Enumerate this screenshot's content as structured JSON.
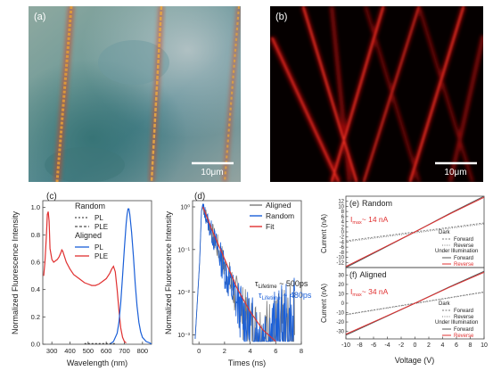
{
  "panels": {
    "a": {
      "label": "(a)",
      "scale": "10μm"
    },
    "b": {
      "label": "(b)",
      "scale": "10μm"
    },
    "c": {
      "label": "(c)"
    },
    "d": {
      "label": "(d)"
    },
    "e": {
      "label": "(e)",
      "title": "Random"
    },
    "f": {
      "label": "(f)",
      "title": "Aligned"
    }
  },
  "colors": {
    "aligned": "#1a5fd8",
    "random": "#7a7a7a",
    "red": "#e03030",
    "gray_curve": "#555555"
  },
  "chart_data": [
    {
      "id": "c",
      "type": "line",
      "xlabel": "Wavelength (nm)",
      "ylabel": "Normalized Fluorescence Intensity",
      "xlim": [
        250,
        850
      ],
      "ylim": [
        0,
        1.05
      ],
      "xticks": [
        300,
        400,
        500,
        600,
        700,
        800
      ],
      "yticks": [
        0.0,
        0.2,
        0.4,
        0.6,
        0.8,
        1.0
      ],
      "legend": {
        "group1": "Random",
        "group2": "Aligned",
        "pl": "PL",
        "ple": "PLE"
      },
      "series": [
        {
          "name": "PLE",
          "group": "Aligned",
          "color": "#e03030",
          "x": [
            255,
            262,
            270,
            275,
            280,
            285,
            290,
            300,
            310,
            320,
            330,
            340,
            350,
            355,
            360,
            370,
            380,
            400,
            420,
            450,
            480,
            500,
            520,
            540,
            560,
            580,
            600,
            620,
            630,
            640,
            650,
            660,
            670,
            680,
            690,
            700,
            710
          ],
          "y": [
            0.5,
            0.6,
            0.8,
            0.95,
            0.97,
            0.9,
            0.7,
            0.62,
            0.6,
            0.61,
            0.62,
            0.64,
            0.67,
            0.69,
            0.68,
            0.64,
            0.6,
            0.55,
            0.51,
            0.48,
            0.45,
            0.44,
            0.43,
            0.43,
            0.44,
            0.46,
            0.48,
            0.52,
            0.55,
            0.57,
            0.53,
            0.4,
            0.25,
            0.12,
            0.05,
            0.02,
            0.01
          ]
        },
        {
          "name": "PL",
          "group": "Aligned",
          "color": "#1a5fd8",
          "x": [
            620,
            640,
            660,
            670,
            680,
            690,
            700,
            710,
            715,
            720,
            725,
            730,
            740,
            750,
            760,
            770,
            780,
            790,
            800,
            820,
            840,
            850
          ],
          "y": [
            0.0,
            0.02,
            0.08,
            0.16,
            0.3,
            0.5,
            0.7,
            0.88,
            0.95,
            0.99,
            0.99,
            0.95,
            0.82,
            0.64,
            0.44,
            0.28,
            0.16,
            0.09,
            0.05,
            0.02,
            0.01,
            0.0
          ]
        }
      ]
    },
    {
      "id": "d",
      "type": "line",
      "xlabel": "Times (ns)",
      "ylabel": "Normalized Fluorescence Intensity",
      "yscale": "log",
      "xlim": [
        -0.5,
        8
      ],
      "ylim": [
        0.0006,
        1.4
      ],
      "xticks": [
        0,
        2,
        4,
        6,
        8
      ],
      "ytick_labels": [
        "10⁻³",
        "10⁻²",
        "10⁻¹",
        "10⁰"
      ],
      "legend": [
        "Aligned",
        "Random",
        "Fit"
      ],
      "annotations": {
        "random_prefix": "τ",
        "random_sub": "Lifetime",
        "random_value": " ~ 500ps",
        "aligned_prefix": "τ",
        "aligned_sub": "Lifetime",
        "aligned_value": " ~ 480ps"
      },
      "series": [
        {
          "name": "Fit",
          "color": "#e03030",
          "x": [
            0.3,
            0.5,
            1,
            2,
            3,
            4,
            5,
            6
          ],
          "y": [
            1.0,
            0.72,
            0.3,
            0.06,
            0.012,
            0.0035,
            0.0013,
            0.0007
          ]
        }
      ]
    },
    {
      "id": "e",
      "type": "line",
      "title": "Random",
      "xlabel": "",
      "ylabel": "Current (nA)",
      "xlim": [
        -10,
        10
      ],
      "ylim": [
        -14,
        14
      ],
      "yticks": [
        -12,
        -10,
        -8,
        -6,
        -4,
        -2,
        0,
        2,
        4,
        6,
        8,
        10,
        12
      ],
      "imax": {
        "prefix": "I",
        "sub": "max",
        "value": "~ 14 nA"
      },
      "legend": {
        "dark": "Dark",
        "forward": "Forward",
        "reverse": "Reverse",
        "illum": "Under Illumination"
      },
      "series": [
        {
          "name": "Dark",
          "x": [
            -10,
            10
          ],
          "y": [
            -3.5,
            3.5
          ]
        },
        {
          "name": "Under Illumination",
          "x": [
            -10,
            -5,
            0,
            5,
            10
          ],
          "y": [
            -14,
            -7,
            0,
            7.2,
            14
          ]
        }
      ]
    },
    {
      "id": "f",
      "type": "line",
      "title": "Aligned",
      "xlabel": "Voltage (V)",
      "ylabel": "Current (nA)",
      "xlim": [
        -10,
        10
      ],
      "ylim": [
        -38,
        38
      ],
      "xticks": [
        -10,
        -8,
        -6,
        -4,
        -2,
        0,
        2,
        4,
        6,
        8,
        10
      ],
      "yticks": [
        -30,
        -20,
        -10,
        0,
        10,
        20,
        30
      ],
      "imax": {
        "prefix": "I",
        "sub": "max",
        "value": "~ 34 nA"
      },
      "legend": {
        "dark": "Dark",
        "forward": "Forward",
        "reverse": "Reverse",
        "illum": "Under Illumination"
      },
      "series": [
        {
          "name": "Dark",
          "x": [
            -10,
            10
          ],
          "y": [
            -12,
            12
          ]
        },
        {
          "name": "Under Illumination",
          "x": [
            -10,
            -5,
            0,
            5,
            10
          ],
          "y": [
            -34,
            -17,
            0,
            17.5,
            34
          ]
        }
      ]
    }
  ]
}
